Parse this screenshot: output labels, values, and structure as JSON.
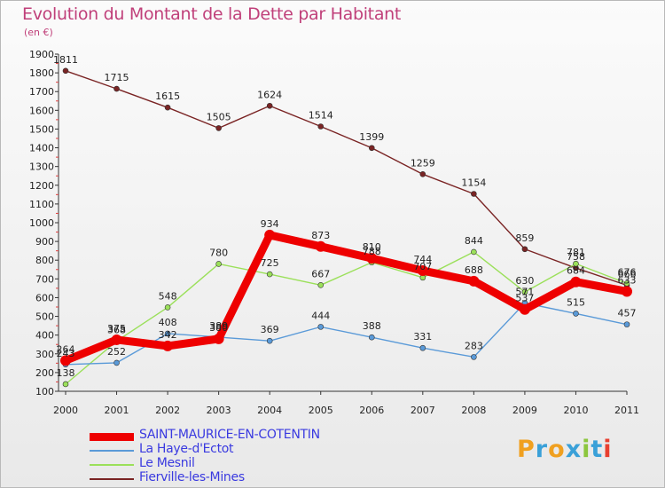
{
  "title": "Evolution du Montant de la Dette par Habitant",
  "subtitle": "(en €)",
  "logo": {
    "letters": [
      "P",
      "r",
      "o",
      "x",
      "i",
      "t",
      "i"
    ],
    "colors": [
      "#f0a020",
      "#3aa0d8",
      "#f0a020",
      "#3aa0d8",
      "#8cc63e",
      "#3aa0d8",
      "#e84030"
    ]
  },
  "chart_data": {
    "type": "line",
    "x": [
      "2000",
      "2001",
      "2002",
      "2003",
      "2004",
      "2005",
      "2006",
      "2007",
      "2008",
      "2009",
      "2010",
      "2011"
    ],
    "ylim": [
      100,
      1900
    ],
    "yticks": [
      100,
      200,
      300,
      400,
      500,
      600,
      700,
      800,
      900,
      1000,
      1100,
      1200,
      1300,
      1400,
      1500,
      1600,
      1700,
      1800,
      1900
    ],
    "grid": false,
    "legend_position": "bottom-left",
    "series": [
      {
        "name": "Fierville-les-Mines",
        "color": "#7a2424",
        "values": [
          1811,
          1715,
          1615,
          1505,
          1624,
          1514,
          1399,
          1259,
          1154,
          859,
          758,
          666
        ]
      },
      {
        "name": "Le Mesnil",
        "color": "#9be05a",
        "values": [
          138,
          368,
          548,
          780,
          725,
          667,
          788,
          707,
          844,
          630,
          781,
          676
        ]
      },
      {
        "name": "La Haye-d'Ectot",
        "color": "#5a9ad8",
        "values": [
          243,
          252,
          408,
          389,
          369,
          444,
          388,
          331,
          283,
          571,
          515,
          457
        ]
      },
      {
        "name": "SAINT-MAURICE-EN-COTENTIN",
        "color": "#ee0000",
        "values": [
          264,
          375,
          342,
          380,
          934,
          873,
          810,
          744,
          688,
          537,
          684,
          633
        ]
      }
    ]
  }
}
